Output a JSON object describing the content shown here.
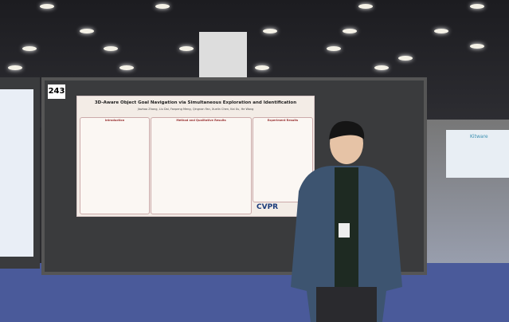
{
  "board_number": "243",
  "poster": {
    "title": "3D-Aware Object Goal Navigation via Simultaneous Exploration and Identification",
    "authors": "Jiazhao Zhang, Liu Dai, Fanpeng Meng, Qingnan Fan, Xuelin Chen, Kai Xu, He Wang",
    "sections": [
      "Introduction",
      "Method and Qualitative Results",
      "Experiment Results"
    ],
    "conference_logo": "CVPR"
  },
  "background_banner": "Kitware"
}
